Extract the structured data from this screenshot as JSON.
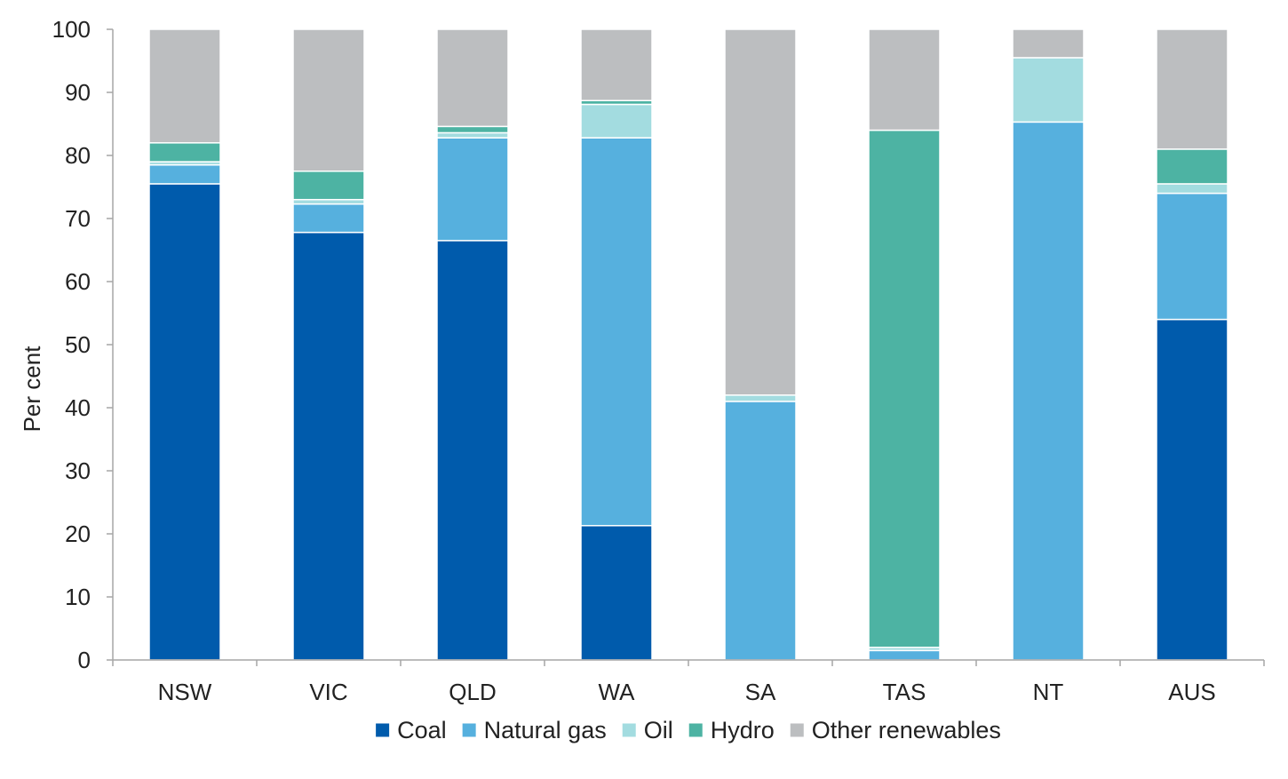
{
  "chart_data": {
    "type": "bar",
    "stacked": true,
    "title": "",
    "xlabel": "",
    "ylabel": "Per cent",
    "ylim": [
      0,
      100
    ],
    "yticks": [
      "0",
      "10",
      "20",
      "30",
      "40",
      "50",
      "60",
      "70",
      "80",
      "90",
      "100"
    ],
    "grid": false,
    "legend_position": "bottom",
    "categories": [
      "NSW",
      "VIC",
      "QLD",
      "WA",
      "SA",
      "TAS",
      "NT",
      "AUS"
    ],
    "series": [
      {
        "name": "Coal",
        "color": "#005BAC",
        "values": [
          75.5,
          67.8,
          66.5,
          21.3,
          0,
          0,
          0,
          54.0
        ]
      },
      {
        "name": "Natural gas",
        "color": "#56B0DE",
        "values": [
          3.0,
          4.5,
          16.3,
          61.5,
          41.0,
          1.5,
          85.3,
          20.0
        ]
      },
      {
        "name": "Oil",
        "color": "#A3DCE0",
        "values": [
          0.5,
          0.7,
          0.8,
          5.3,
          1.0,
          0.5,
          10.2,
          1.5
        ]
      },
      {
        "name": "Hydro",
        "color": "#4DB3A3",
        "values": [
          3.0,
          4.5,
          1.0,
          0.6,
          0,
          82.0,
          0,
          5.5
        ]
      },
      {
        "name": "Other renewables",
        "color": "#BCBEC0",
        "values": [
          18.0,
          22.5,
          15.4,
          11.3,
          58.0,
          16.0,
          4.5,
          19.0
        ]
      }
    ]
  }
}
